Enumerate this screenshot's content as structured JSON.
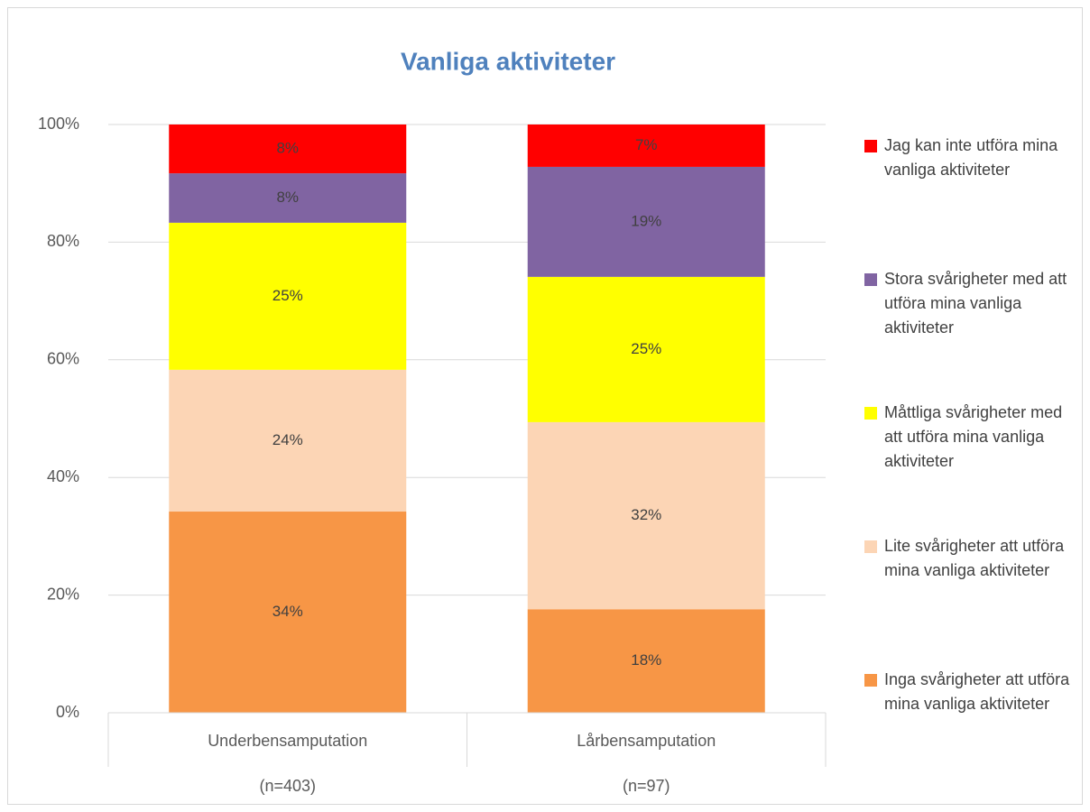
{
  "chart_data": {
    "type": "stacked_bar",
    "title": "Vanliga aktiviteter",
    "categories": [
      "Underbensamputation",
      "Lårbensamputation"
    ],
    "category_sublabels": [
      "(n=403)",
      "(n=97)"
    ],
    "series": [
      {
        "name": "Inga svårigheter att utföra mina vanliga aktiviteter",
        "color": "#f79646",
        "values": [
          34.2,
          17.6
        ],
        "value_labels": [
          "34%",
          "18%"
        ]
      },
      {
        "name": "Lite svårigheter att utföra mina vanliga aktiviteter",
        "color": "#fcd5b5",
        "values": [
          24.1,
          31.8
        ],
        "value_labels": [
          "24%",
          "32%"
        ]
      },
      {
        "name": "Måttliga svårigheter med att utföra mina vanliga aktiviteter",
        "color": "#ffff00",
        "values": [
          25.0,
          24.7
        ],
        "value_labels": [
          "25%",
          "25%"
        ]
      },
      {
        "name": "Stora svårigheter med att utföra mina vanliga aktiviteter",
        "color": "#8064a2",
        "values": [
          8.4,
          18.7
        ],
        "value_labels": [
          "8%",
          "19%"
        ]
      },
      {
        "name": "Jag kan inte utföra mina vanliga aktiviteter",
        "color": "#ff0000",
        "values": [
          8.3,
          7.2
        ],
        "value_labels": [
          "8%",
          "7%"
        ]
      }
    ],
    "ylim": [
      0,
      100
    ],
    "yticks": [
      {
        "value": 0,
        "label": "0%"
      },
      {
        "value": 20,
        "label": "20%"
      },
      {
        "value": 40,
        "label": "40%"
      },
      {
        "value": 60,
        "label": "60%"
      },
      {
        "value": 80,
        "label": "80%"
      },
      {
        "value": 100,
        "label": "100%"
      }
    ],
    "grid": true,
    "legend": "right"
  }
}
